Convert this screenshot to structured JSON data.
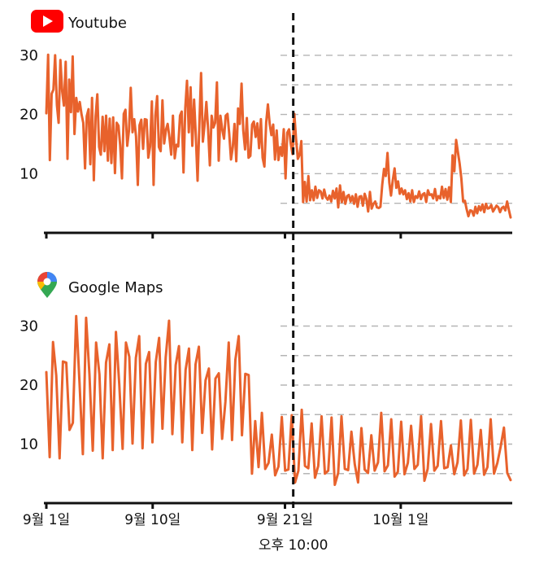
{
  "chart_data": [
    {
      "type": "line",
      "title": "Youtube",
      "icon": "youtube-logo-icon",
      "color": "#e8622c",
      "yticks": [
        10,
        20,
        30
      ],
      "ylim": [
        0,
        32
      ],
      "grid": true,
      "grid_values": [
        5,
        10,
        15,
        20,
        25,
        30
      ],
      "x_range": [
        0,
        39.3
      ],
      "series": [
        {
          "values": [
            20.2,
            30.1,
            12.3,
            23.5,
            24.2,
            30.0,
            21.6,
            18.6,
            29.2,
            23.9,
            21.5,
            28.9,
            12.5,
            25.9,
            20.4,
            29.8,
            16.7,
            22.8,
            20.5,
            22.1,
            20.0,
            18.6,
            10.9,
            19.7,
            20.9,
            11.6,
            22.8,
            8.9,
            19.7,
            23.4,
            14.5,
            13.2,
            19.6,
            13.8,
            19.8,
            12.2,
            19.3,
            11.8,
            19.5,
            10.1,
            18.6,
            18.1,
            14.8,
            9.2,
            20.1,
            20.8,
            14.7,
            17.4,
            24.5,
            17.0,
            19.2,
            16.3,
            8.1,
            18.2,
            19.1,
            14.2,
            19.2,
            19.1,
            12.7,
            14.6,
            22.2,
            8.1,
            19.8,
            23.1,
            14.5,
            13.8,
            22.4,
            15.1,
            17.4,
            18.4,
            16.1,
            13.2,
            19.8,
            12.6,
            14.9,
            14.6,
            19.8,
            20.5,
            10.2,
            21.1,
            25.7,
            17.0,
            24.6,
            14.7,
            22.5,
            16.5,
            8.8,
            18.3,
            27.0,
            15.4,
            18.4,
            22.1,
            17.4,
            11.4,
            19.8,
            17.8,
            18.6,
            25.4,
            12.2,
            19.8,
            17.5,
            15.9,
            19.8,
            20.1,
            16.8,
            12.4,
            14.5,
            18.4,
            12.1,
            21.0,
            18.4,
            25.2,
            17.3,
            14.1,
            19.4,
            12.7,
            13.0,
            18.3,
            18.8,
            16.2,
            18.5,
            14.3,
            19.2,
            12.7,
            11.2,
            18.7,
            21.7,
            18.4,
            16.5,
            18.3,
            12.4,
            17.3,
            12.3,
            14.5,
            13.0,
            17.5,
            9.2,
            16.9,
            17.5,
            15.1,
            13.3,
            20.1,
            15.9,
            12.5,
            13.2,
            15.5,
            5.2,
            8.6,
            5.3,
            9.6,
            5.5,
            7.2,
            5.5,
            7.8,
            5.9,
            7.2,
            7.0,
            5.8,
            7.3,
            6.0,
            5.6,
            6.3,
            5.3,
            7.1,
            5.8,
            7.5,
            4.3,
            8.0,
            5.2,
            6.9,
            4.9,
            6.2,
            6.4,
            5.3,
            6.2,
            4.9,
            6.5,
            4.4,
            6.1,
            6.2,
            4.6,
            6.6,
            5.7,
            3.6,
            6.9,
            4.1,
            4.9,
            5.3,
            4.3,
            4.2,
            4.4,
            8.1,
            10.8,
            9.6,
            13.5,
            8.5,
            6.3,
            8.9,
            10.9,
            7.6,
            8.7,
            6.6,
            7.5,
            6.5,
            7.2,
            5.7,
            6.7,
            5.3,
            7.2,
            5.2,
            6.2,
            5.9,
            7.0,
            5.7,
            6.5,
            6.7,
            5.2,
            7.2,
            6.4,
            6.5,
            5.8,
            7.4,
            5.5,
            6.2,
            5.8,
            7.8,
            5.9,
            7.4,
            5.6,
            7.7,
            5.2,
            13.1,
            10.4,
            15.7,
            13.7,
            11.7,
            9.2,
            5.3,
            5.4,
            4.0,
            2.8,
            3.8,
            3.7,
            2.9,
            4.4,
            3.3,
            4.5,
            3.8,
            4.8,
            3.5,
            4.9,
            4.1,
            4.2,
            4.7,
            3.6,
            4.1,
            4.6,
            4.3,
            3.5,
            4.2,
            4.4,
            3.8,
            5.3,
            3.9,
            2.6
          ]
        }
      ]
    },
    {
      "type": "line",
      "title": "Google Maps",
      "icon": "google-maps-pin-icon",
      "color": "#e8622c",
      "yticks": [
        10,
        20,
        30
      ],
      "ylim": [
        0,
        32
      ],
      "grid": true,
      "grid_values": [
        5,
        10,
        15,
        20,
        25,
        30
      ],
      "x_range": [
        0,
        39.3
      ],
      "series": [
        {
          "values": [
            22.2,
            7.8,
            27.3,
            21.6,
            7.6,
            24.0,
            23.8,
            12.4,
            13.6,
            31.7,
            20.4,
            8.3,
            31.4,
            21.8,
            8.9,
            27.2,
            21.8,
            7.6,
            23.8,
            26.9,
            9.0,
            29.0,
            20.1,
            9.2,
            27.2,
            24.8,
            10.1,
            24.6,
            28.3,
            9.3,
            23.6,
            25.6,
            10.3,
            23.9,
            28.0,
            12.6,
            24.7,
            30.9,
            11.7,
            23.4,
            26.6,
            10.3,
            22.6,
            26.2,
            9.0,
            23.5,
            26.5,
            11.9,
            20.8,
            22.8,
            9.1,
            21.1,
            22.0,
            10.9,
            17.1,
            27.2,
            10.7,
            24.3,
            28.3,
            11.5,
            21.9,
            21.7,
            5.0,
            13.9,
            6.1,
            15.3,
            5.8,
            6.8,
            11.6,
            4.7,
            6.2,
            14.6,
            5.5,
            5.7,
            14.9,
            3.5,
            5.5,
            15.8,
            6.3,
            5.9,
            13.5,
            4.3,
            6.3,
            14.7,
            5.0,
            5.5,
            14.5,
            3.1,
            5.1,
            14.7,
            5.8,
            5.6,
            12.1,
            6.6,
            3.5,
            12.7,
            5.7,
            5.1,
            11.5,
            5.5,
            6.9,
            15.3,
            5.4,
            6.4,
            14.2,
            4.5,
            5.3,
            13.8,
            4.9,
            6.8,
            13.1,
            5.8,
            6.5,
            14.7,
            3.8,
            5.8,
            13.4,
            5.5,
            6.3,
            13.9,
            5.9,
            6.1,
            9.8,
            4.9,
            6.9,
            14.0,
            4.7,
            5.8,
            14.1,
            5.0,
            6.5,
            12.4,
            4.8,
            6.1,
            14.2,
            5.0,
            6.8,
            9.6,
            12.8,
            5.1,
            3.9
          ]
        }
      ]
    }
  ],
  "x_axis": {
    "tick_labels": [
      {
        "x": 0,
        "label": "9월 1일"
      },
      {
        "x": 9,
        "label": "9월 10일"
      },
      {
        "x": 20.2,
        "label": "9월 21일"
      },
      {
        "x": 30,
        "label": "10월 1일"
      }
    ],
    "marker": {
      "x": 20.9,
      "label": "오후 10:00"
    }
  }
}
